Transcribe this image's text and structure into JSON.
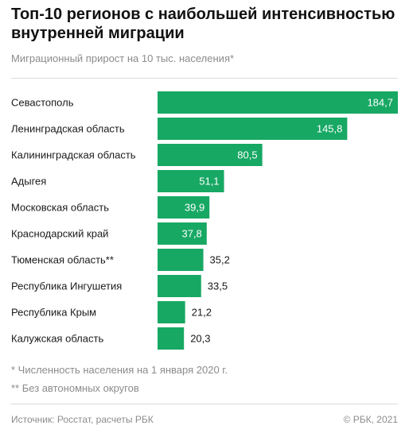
{
  "header": {
    "title": "Топ-10 регионов с наибольшей интенсивностью внутренней миграции",
    "subtitle": "Миграционный прирост на 10 тыс. населения*"
  },
  "notes": {
    "note1": "* Численность населения на 1 января 2020 г.",
    "note2": "** Без автономных округов"
  },
  "footer": {
    "source": "Источник: Росстат, расчеты РБК",
    "copyright": "© РБК, 2021"
  },
  "colors": {
    "bar": "#17a864",
    "label_inside": "#ffffff",
    "label_outside": "#1a1a1a"
  },
  "chart_data": {
    "type": "bar",
    "orientation": "horizontal",
    "title": "Топ-10 регионов с наибольшей интенсивностью внутренней миграции",
    "subtitle": "Миграционный прирост на 10 тыс. населения*",
    "categories": [
      "Севастополь",
      "Ленинградская область",
      "Калининградская область",
      "Адыгея",
      "Московская область",
      "Краснодарский край",
      "Тюменская область**",
      "Республика Ингушетия",
      "Республика Крым",
      "Калужская область"
    ],
    "values": [
      184.7,
      145.8,
      80.5,
      51.1,
      39.9,
      37.8,
      35.2,
      33.5,
      21.2,
      20.3
    ],
    "value_labels": [
      "184,7",
      "145,8",
      "80,5",
      "51,1",
      "39,9",
      "37,8",
      "35,2",
      "33,5",
      "21,2",
      "20,3"
    ],
    "xlim": [
      0,
      184.7
    ],
    "grid": false,
    "legend": "none"
  }
}
